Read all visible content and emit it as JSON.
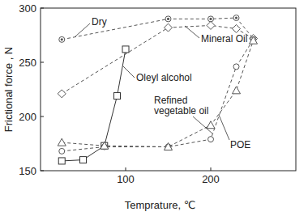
{
  "chart_data": {
    "type": "line",
    "x_label": "Temprature, ℃",
    "y_label": "Frictional force , N",
    "xlim": [
      0,
      300
    ],
    "xticks": [
      100,
      200
    ],
    "ylim": [
      150,
      300
    ],
    "yticks": [
      150,
      200,
      250,
      300
    ],
    "grid": false,
    "series": [
      {
        "name": "Dry",
        "color": "#555555",
        "marker": "bullseye",
        "line_style": "dashed",
        "x": [
          25,
          150,
          200,
          230,
          250
        ],
        "values": [
          271,
          290,
          290,
          291,
          272
        ]
      },
      {
        "name": "Mineral Oil",
        "color": "#555555",
        "marker": "diamond",
        "line_style": "dashed",
        "x": [
          25,
          150,
          200,
          230,
          250
        ],
        "values": [
          221,
          282,
          284,
          281,
          272
        ]
      },
      {
        "name": "Oleyl alcohol",
        "color": "#333333",
        "marker": "square",
        "line_style": "solid",
        "x": [
          25,
          50,
          75,
          90,
          100
        ],
        "values": [
          159,
          160,
          173,
          219,
          262
        ]
      },
      {
        "name": "Refined vegetable oil",
        "color": "#555555",
        "marker": "circle",
        "line_style": "dashed",
        "x": [
          25,
          75,
          150,
          200,
          230,
          250
        ],
        "values": [
          168,
          172,
          172,
          179,
          246,
          271
        ]
      },
      {
        "name": "POE",
        "color": "#555555",
        "marker": "triangle",
        "line_style": "dashed",
        "x": [
          25,
          75,
          150,
          200,
          230,
          250
        ],
        "values": [
          176,
          173,
          172,
          192,
          224,
          270
        ]
      }
    ]
  }
}
